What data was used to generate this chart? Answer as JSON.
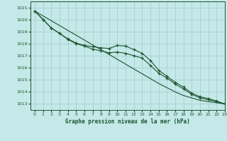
{
  "title": "Graphe pression niveau de la mer (hPa)",
  "background_color": "#c5e8e8",
  "grid_color": "#a8d0d0",
  "line_color": "#1a5530",
  "xlim": [
    -0.5,
    23
  ],
  "ylim": [
    1012.5,
    1021.5
  ],
  "yticks": [
    1013,
    1014,
    1015,
    1016,
    1017,
    1018,
    1019,
    1020,
    1021
  ],
  "xticks": [
    0,
    1,
    2,
    3,
    4,
    5,
    6,
    7,
    8,
    9,
    10,
    11,
    12,
    13,
    14,
    15,
    16,
    17,
    18,
    19,
    20,
    21,
    22,
    23
  ],
  "line_straight_x": [
    0,
    1,
    2,
    3,
    4,
    5,
    6,
    7,
    8,
    9,
    10,
    11,
    12,
    13,
    14,
    15,
    16,
    17,
    18,
    19,
    20,
    21,
    22,
    23
  ],
  "line_straight_y": [
    1020.7,
    1020.3,
    1019.9,
    1019.5,
    1019.1,
    1018.7,
    1018.3,
    1017.9,
    1017.5,
    1017.1,
    1016.7,
    1016.3,
    1015.9,
    1015.5,
    1015.1,
    1014.7,
    1014.35,
    1014.0,
    1013.7,
    1013.5,
    1013.3,
    1013.2,
    1013.1,
    1013.0
  ],
  "line_top_x": [
    0,
    1,
    2,
    3,
    4,
    5,
    6,
    7,
    8,
    9,
    10,
    11,
    12,
    13,
    14,
    15,
    16,
    17,
    18,
    19,
    20,
    21,
    22,
    23
  ],
  "line_top_y": [
    1020.7,
    1020.0,
    1019.3,
    1018.85,
    1018.4,
    1018.05,
    1017.85,
    1017.75,
    1017.65,
    1017.6,
    1017.85,
    1017.8,
    1017.5,
    1017.2,
    1016.6,
    1015.8,
    1015.3,
    1014.8,
    1014.4,
    1013.9,
    1013.6,
    1013.45,
    1013.25,
    1013.0
  ],
  "line_bot_x": [
    0,
    1,
    2,
    3,
    4,
    5,
    6,
    7,
    8,
    9,
    10,
    11,
    12,
    13,
    14,
    15,
    16,
    17,
    18,
    19,
    20,
    21,
    22,
    23
  ],
  "line_bot_y": [
    1020.7,
    1020.0,
    1019.3,
    1018.85,
    1018.35,
    1018.0,
    1017.8,
    1017.55,
    1017.4,
    1017.25,
    1017.3,
    1017.2,
    1017.0,
    1016.8,
    1016.2,
    1015.55,
    1015.15,
    1014.65,
    1014.25,
    1013.8,
    1013.5,
    1013.35,
    1013.2,
    1013.0
  ]
}
